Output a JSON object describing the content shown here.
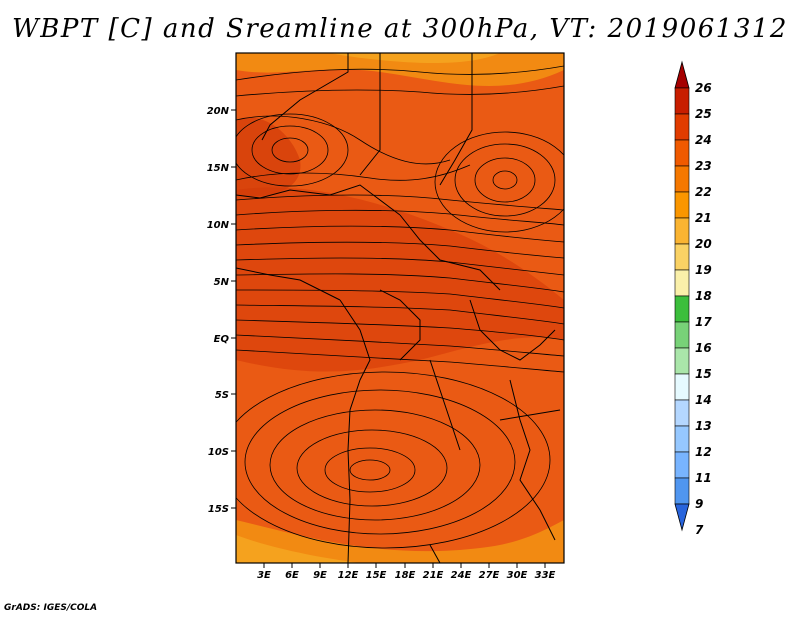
{
  "title": "WBPT [C] and Sreamline at 300hPa, VT: 2019061312",
  "credit": "GrADS: IGES/COLA",
  "map": {
    "lat_ticks": [
      "20N",
      "15N",
      "10N",
      "5N",
      "EQ",
      "5S",
      "10S",
      "15S"
    ],
    "lon_ticks": [
      "3E",
      "6E",
      "9E",
      "12E",
      "15E",
      "18E",
      "21E",
      "24E",
      "27E",
      "30E",
      "33E"
    ]
  },
  "colorbar": {
    "labels": [
      "26",
      "25",
      "24",
      "23",
      "22",
      "21",
      "20",
      "19",
      "18",
      "17",
      "16",
      "15",
      "14",
      "13",
      "12",
      "11",
      "9",
      "7"
    ],
    "colors": [
      "#a50000",
      "#c81e00",
      "#e13c00",
      "#f05a00",
      "#f57800",
      "#fa9600",
      "#fab432",
      "#fad264",
      "#faf0aa",
      "#3cbe3c",
      "#78d278",
      "#aae6aa",
      "#e6faff",
      "#b4d7ff",
      "#96c8ff",
      "#78b4ff",
      "#5096f0",
      "#2864dc"
    ]
  },
  "colors": {
    "field_main": "#ea5a14",
    "field_warm": "#d9400a",
    "field_cool": "#f0820f",
    "field_edge": "#f5a01e"
  }
}
